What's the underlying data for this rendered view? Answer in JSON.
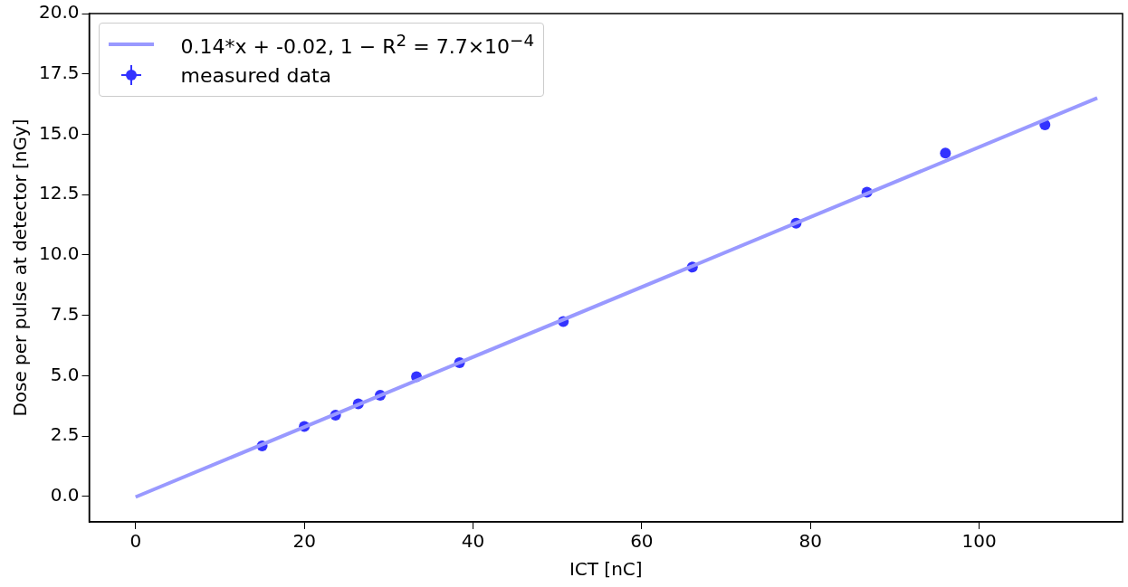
{
  "chart_data": {
    "type": "scatter",
    "xlabel": "ICT [nC]",
    "ylabel": "Dose per pulse at detector [nGy]",
    "series": [
      {
        "name": "0.14*x + -0.02, 1 − R$^{2}$ = 7.7×10$^{−4}$",
        "type": "line",
        "color": "#9999ff",
        "x": [
          0,
          114
        ],
        "values": [
          -0.02,
          16.5
        ],
        "marker": "none"
      },
      {
        "name": "measured data",
        "type": "scatter",
        "color": "#3333ff",
        "x": [
          15.0,
          20.0,
          23.7,
          26.4,
          29.0,
          33.3,
          38.4,
          50.7,
          66.0,
          78.3,
          86.7,
          96.0,
          107.8
        ],
        "values": [
          2.1,
          2.9,
          3.37,
          3.84,
          4.19,
          4.96,
          5.54,
          7.25,
          9.5,
          11.32,
          12.6,
          14.22,
          15.39
        ],
        "marker": "circle"
      }
    ],
    "xlim": [
      -5.5,
      117
    ],
    "xticks": [
      0,
      20,
      40,
      60,
      80,
      100
    ],
    "ylim": [
      -1.05,
      20
    ],
    "yticks": [
      {
        "value": 0,
        "label": "0.0"
      },
      2.5,
      {
        "value": 5,
        "label": "5.0"
      },
      7.5,
      {
        "value": 10,
        "label": "10.0"
      },
      12.5,
      {
        "value": 15,
        "label": "15.0"
      },
      17.5,
      {
        "value": 20,
        "label": "20.0"
      }
    ],
    "grid": false,
    "legend": "top left"
  }
}
